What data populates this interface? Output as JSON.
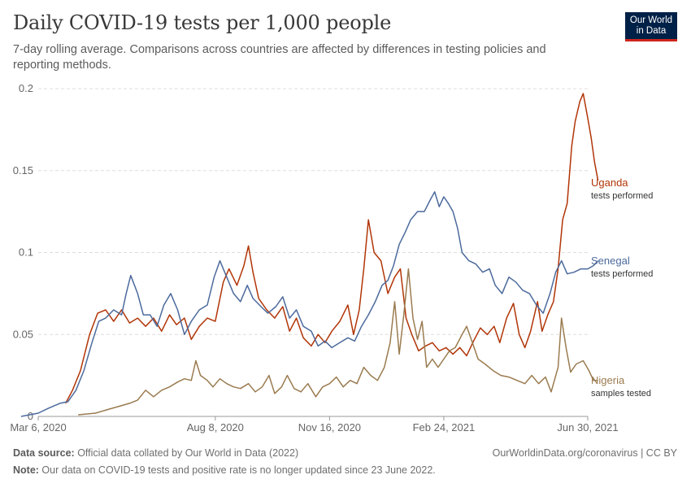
{
  "header": {
    "title": "Daily COVID-19 tests per 1,000 people",
    "subtitle": "7-day rolling average. Comparisons across countries are affected by differences in testing policies and reporting methods."
  },
  "logo": {
    "line1": "Our World",
    "line2": "in Data"
  },
  "footer": {
    "source_label": "Data source:",
    "source_text": " Official data collated by Our World in Data (2022)",
    "credit": "OurWorldinData.org/coronavirus | CC BY",
    "note_label": "Note:",
    "note_text": " Our data on COVID-19 tests and positive rate is no longer updated since 23 June 2022."
  },
  "chart_data": {
    "type": "line",
    "title": "Daily COVID-19 tests per 1,000 people",
    "xlabel": "",
    "ylabel": "",
    "x_range": [
      "2020-02-20",
      "2021-07-15"
    ],
    "ylim": [
      0,
      0.2
    ],
    "yticks": [
      0,
      0.05,
      0.1,
      0.15,
      0.2
    ],
    "ytick_labels": [
      "0",
      "0.05",
      "0.1",
      "0.15",
      "0.2"
    ],
    "xticks": [
      "2020-03-06",
      "2020-08-08",
      "2020-11-16",
      "2021-02-24",
      "2021-06-30"
    ],
    "xtick_labels": [
      "Mar 6, 2020",
      "Aug 8, 2020",
      "Nov 16, 2020",
      "Feb 24, 2021",
      "Jun 30, 2021"
    ],
    "grid": true,
    "legend": "inline-right",
    "series": [
      {
        "name": "Uganda",
        "sublabel": "tests performed",
        "color": "#b13507",
        "points": [
          [
            "2020-03-30",
            0.008
          ],
          [
            "2020-04-05",
            0.016
          ],
          [
            "2020-04-12",
            0.028
          ],
          [
            "2020-04-20",
            0.05
          ],
          [
            "2020-04-27",
            0.063
          ],
          [
            "2020-05-04",
            0.065
          ],
          [
            "2020-05-11",
            0.058
          ],
          [
            "2020-05-18",
            0.065
          ],
          [
            "2020-05-25",
            0.057
          ],
          [
            "2020-06-01",
            0.06
          ],
          [
            "2020-06-08",
            0.055
          ],
          [
            "2020-06-15",
            0.06
          ],
          [
            "2020-06-22",
            0.052
          ],
          [
            "2020-06-29",
            0.062
          ],
          [
            "2020-07-05",
            0.056
          ],
          [
            "2020-07-12",
            0.06
          ],
          [
            "2020-07-18",
            0.047
          ],
          [
            "2020-07-25",
            0.055
          ],
          [
            "2020-08-01",
            0.06
          ],
          [
            "2020-08-08",
            0.058
          ],
          [
            "2020-08-15",
            0.082
          ],
          [
            "2020-08-20",
            0.09
          ],
          [
            "2020-08-27",
            0.08
          ],
          [
            "2020-09-02",
            0.092
          ],
          [
            "2020-09-06",
            0.104
          ],
          [
            "2020-09-10",
            0.088
          ],
          [
            "2020-09-15",
            0.072
          ],
          [
            "2020-09-22",
            0.065
          ],
          [
            "2020-09-29",
            0.06
          ],
          [
            "2020-10-06",
            0.067
          ],
          [
            "2020-10-12",
            0.052
          ],
          [
            "2020-10-18",
            0.06
          ],
          [
            "2020-10-24",
            0.048
          ],
          [
            "2020-10-31",
            0.043
          ],
          [
            "2020-11-06",
            0.05
          ],
          [
            "2020-11-12",
            0.045
          ],
          [
            "2020-11-18",
            0.052
          ],
          [
            "2020-11-25",
            0.058
          ],
          [
            "2020-12-02",
            0.068
          ],
          [
            "2020-12-07",
            0.05
          ],
          [
            "2020-12-12",
            0.065
          ],
          [
            "2020-12-16",
            0.09
          ],
          [
            "2020-12-20",
            0.12
          ],
          [
            "2020-12-25",
            0.1
          ],
          [
            "2020-12-31",
            0.095
          ],
          [
            "2021-01-06",
            0.075
          ],
          [
            "2021-01-12",
            0.085
          ],
          [
            "2021-01-17",
            0.09
          ],
          [
            "2021-01-22",
            0.06
          ],
          [
            "2021-01-27",
            0.05
          ],
          [
            "2021-02-02",
            0.04
          ],
          [
            "2021-02-08",
            0.043
          ],
          [
            "2021-02-14",
            0.045
          ],
          [
            "2021-02-20",
            0.04
          ],
          [
            "2021-02-26",
            0.042
          ],
          [
            "2021-03-04",
            0.038
          ],
          [
            "2021-03-10",
            0.042
          ],
          [
            "2021-03-16",
            0.037
          ],
          [
            "2021-03-22",
            0.046
          ],
          [
            "2021-03-28",
            0.054
          ],
          [
            "2021-04-03",
            0.05
          ],
          [
            "2021-04-09",
            0.055
          ],
          [
            "2021-04-14",
            0.045
          ],
          [
            "2021-04-20",
            0.06
          ],
          [
            "2021-04-26",
            0.069
          ],
          [
            "2021-05-01",
            0.05
          ],
          [
            "2021-05-06",
            0.042
          ],
          [
            "2021-05-11",
            0.052
          ],
          [
            "2021-05-17",
            0.07
          ],
          [
            "2021-05-21",
            0.052
          ],
          [
            "2021-05-26",
            0.062
          ],
          [
            "2021-05-31",
            0.07
          ],
          [
            "2021-06-04",
            0.09
          ],
          [
            "2021-06-08",
            0.12
          ],
          [
            "2021-06-12",
            0.13
          ],
          [
            "2021-06-16",
            0.165
          ],
          [
            "2021-06-19",
            0.18
          ],
          [
            "2021-06-23",
            0.192
          ],
          [
            "2021-06-26",
            0.197
          ],
          [
            "2021-06-30",
            0.182
          ],
          [
            "2021-07-03",
            0.17
          ],
          [
            "2021-07-06",
            0.155
          ],
          [
            "2021-07-09",
            0.144
          ]
        ]
      },
      {
        "name": "Senegal",
        "sublabel": "tests performed",
        "color": "#4c6a9c",
        "points": [
          [
            "2020-02-20",
            0.0
          ],
          [
            "2020-03-06",
            0.002
          ],
          [
            "2020-03-15",
            0.005
          ],
          [
            "2020-03-25",
            0.008
          ],
          [
            "2020-04-01",
            0.009
          ],
          [
            "2020-04-08",
            0.016
          ],
          [
            "2020-04-15",
            0.028
          ],
          [
            "2020-04-22",
            0.045
          ],
          [
            "2020-04-28",
            0.058
          ],
          [
            "2020-05-04",
            0.06
          ],
          [
            "2020-05-11",
            0.065
          ],
          [
            "2020-05-18",
            0.062
          ],
          [
            "2020-05-22",
            0.075
          ],
          [
            "2020-05-26",
            0.086
          ],
          [
            "2020-06-01",
            0.075
          ],
          [
            "2020-06-06",
            0.062
          ],
          [
            "2020-06-12",
            0.062
          ],
          [
            "2020-06-18",
            0.055
          ],
          [
            "2020-06-24",
            0.068
          ],
          [
            "2020-06-30",
            0.075
          ],
          [
            "2020-07-06",
            0.065
          ],
          [
            "2020-07-12",
            0.05
          ],
          [
            "2020-07-18",
            0.058
          ],
          [
            "2020-07-25",
            0.065
          ],
          [
            "2020-08-01",
            0.068
          ],
          [
            "2020-08-07",
            0.085
          ],
          [
            "2020-08-12",
            0.095
          ],
          [
            "2020-08-18",
            0.085
          ],
          [
            "2020-08-24",
            0.075
          ],
          [
            "2020-08-30",
            0.07
          ],
          [
            "2020-09-05",
            0.08
          ],
          [
            "2020-09-10",
            0.072
          ],
          [
            "2020-09-17",
            0.067
          ],
          [
            "2020-09-23",
            0.063
          ],
          [
            "2020-09-30",
            0.067
          ],
          [
            "2020-10-06",
            0.073
          ],
          [
            "2020-10-12",
            0.06
          ],
          [
            "2020-10-18",
            0.065
          ],
          [
            "2020-10-24",
            0.055
          ],
          [
            "2020-10-31",
            0.052
          ],
          [
            "2020-11-06",
            0.043
          ],
          [
            "2020-11-12",
            0.046
          ],
          [
            "2020-11-18",
            0.042
          ],
          [
            "2020-11-25",
            0.045
          ],
          [
            "2020-12-02",
            0.048
          ],
          [
            "2020-12-08",
            0.046
          ],
          [
            "2020-12-14",
            0.055
          ],
          [
            "2020-12-20",
            0.062
          ],
          [
            "2020-12-26",
            0.07
          ],
          [
            "2021-01-01",
            0.08
          ],
          [
            "2021-01-06",
            0.083
          ],
          [
            "2021-01-11",
            0.092
          ],
          [
            "2021-01-16",
            0.105
          ],
          [
            "2021-01-21",
            0.112
          ],
          [
            "2021-01-26",
            0.12
          ],
          [
            "2021-02-01",
            0.125
          ],
          [
            "2021-02-07",
            0.125
          ],
          [
            "2021-02-12",
            0.132
          ],
          [
            "2021-02-16",
            0.137
          ],
          [
            "2021-02-20",
            0.128
          ],
          [
            "2021-02-24",
            0.134
          ],
          [
            "2021-02-28",
            0.13
          ],
          [
            "2021-03-04",
            0.125
          ],
          [
            "2021-03-08",
            0.115
          ],
          [
            "2021-03-12",
            0.1
          ],
          [
            "2021-03-18",
            0.095
          ],
          [
            "2021-03-24",
            0.093
          ],
          [
            "2021-03-30",
            0.088
          ],
          [
            "2021-04-05",
            0.09
          ],
          [
            "2021-04-10",
            0.08
          ],
          [
            "2021-04-16",
            0.075
          ],
          [
            "2021-04-22",
            0.085
          ],
          [
            "2021-04-28",
            0.082
          ],
          [
            "2021-05-04",
            0.077
          ],
          [
            "2021-05-10",
            0.075
          ],
          [
            "2021-05-16",
            0.068
          ],
          [
            "2021-05-22",
            0.063
          ],
          [
            "2021-05-28",
            0.075
          ],
          [
            "2021-06-02",
            0.088
          ],
          [
            "2021-06-07",
            0.095
          ],
          [
            "2021-06-12",
            0.087
          ],
          [
            "2021-06-18",
            0.088
          ],
          [
            "2021-06-24",
            0.09
          ],
          [
            "2021-06-30",
            0.09
          ],
          [
            "2021-07-05",
            0.092
          ],
          [
            "2021-07-09",
            0.095
          ]
        ]
      },
      {
        "name": "Nigeria",
        "sublabel": "samples tested",
        "color": "#9a7b4f",
        "points": [
          [
            "2020-04-10",
            0.001
          ],
          [
            "2020-04-25",
            0.002
          ],
          [
            "2020-05-05",
            0.004
          ],
          [
            "2020-05-15",
            0.006
          ],
          [
            "2020-05-25",
            0.008
          ],
          [
            "2020-06-01",
            0.01
          ],
          [
            "2020-06-08",
            0.016
          ],
          [
            "2020-06-15",
            0.012
          ],
          [
            "2020-06-22",
            0.016
          ],
          [
            "2020-06-29",
            0.018
          ],
          [
            "2020-07-06",
            0.021
          ],
          [
            "2020-07-12",
            0.023
          ],
          [
            "2020-07-18",
            0.022
          ],
          [
            "2020-07-22",
            0.034
          ],
          [
            "2020-07-26",
            0.025
          ],
          [
            "2020-08-01",
            0.022
          ],
          [
            "2020-08-06",
            0.018
          ],
          [
            "2020-08-12",
            0.023
          ],
          [
            "2020-08-18",
            0.02
          ],
          [
            "2020-08-24",
            0.018
          ],
          [
            "2020-08-30",
            0.017
          ],
          [
            "2020-09-06",
            0.02
          ],
          [
            "2020-09-12",
            0.015
          ],
          [
            "2020-09-18",
            0.018
          ],
          [
            "2020-09-24",
            0.025
          ],
          [
            "2020-09-29",
            0.014
          ],
          [
            "2020-10-05",
            0.018
          ],
          [
            "2020-10-10",
            0.025
          ],
          [
            "2020-10-16",
            0.017
          ],
          [
            "2020-10-22",
            0.015
          ],
          [
            "2020-10-28",
            0.02
          ],
          [
            "2020-11-04",
            0.012
          ],
          [
            "2020-11-10",
            0.018
          ],
          [
            "2020-11-16",
            0.02
          ],
          [
            "2020-11-22",
            0.024
          ],
          [
            "2020-11-28",
            0.018
          ],
          [
            "2020-12-04",
            0.022
          ],
          [
            "2020-12-10",
            0.02
          ],
          [
            "2020-12-16",
            0.03
          ],
          [
            "2020-12-22",
            0.025
          ],
          [
            "2020-12-28",
            0.022
          ],
          [
            "2021-01-03",
            0.03
          ],
          [
            "2021-01-08",
            0.045
          ],
          [
            "2021-01-12",
            0.07
          ],
          [
            "2021-01-16",
            0.038
          ],
          [
            "2021-01-20",
            0.062
          ],
          [
            "2021-01-24",
            0.09
          ],
          [
            "2021-01-28",
            0.06
          ],
          [
            "2021-02-01",
            0.047
          ],
          [
            "2021-02-05",
            0.058
          ],
          [
            "2021-02-09",
            0.03
          ],
          [
            "2021-02-14",
            0.035
          ],
          [
            "2021-02-19",
            0.03
          ],
          [
            "2021-02-24",
            0.035
          ],
          [
            "2021-03-01",
            0.04
          ],
          [
            "2021-03-06",
            0.042
          ],
          [
            "2021-03-12",
            0.05
          ],
          [
            "2021-03-16",
            0.055
          ],
          [
            "2021-03-21",
            0.045
          ],
          [
            "2021-03-26",
            0.035
          ],
          [
            "2021-04-01",
            0.032
          ],
          [
            "2021-04-08",
            0.028
          ],
          [
            "2021-04-15",
            0.025
          ],
          [
            "2021-04-22",
            0.024
          ],
          [
            "2021-04-29",
            0.022
          ],
          [
            "2021-05-06",
            0.02
          ],
          [
            "2021-05-12",
            0.025
          ],
          [
            "2021-05-18",
            0.02
          ],
          [
            "2021-05-24",
            0.024
          ],
          [
            "2021-05-29",
            0.015
          ],
          [
            "2021-06-04",
            0.03
          ],
          [
            "2021-06-07",
            0.06
          ],
          [
            "2021-06-11",
            0.042
          ],
          [
            "2021-06-15",
            0.027
          ],
          [
            "2021-06-20",
            0.032
          ],
          [
            "2021-06-26",
            0.034
          ],
          [
            "2021-07-01",
            0.028
          ],
          [
            "2021-07-05",
            0.022
          ],
          [
            "2021-07-09",
            0.022
          ]
        ]
      }
    ]
  }
}
